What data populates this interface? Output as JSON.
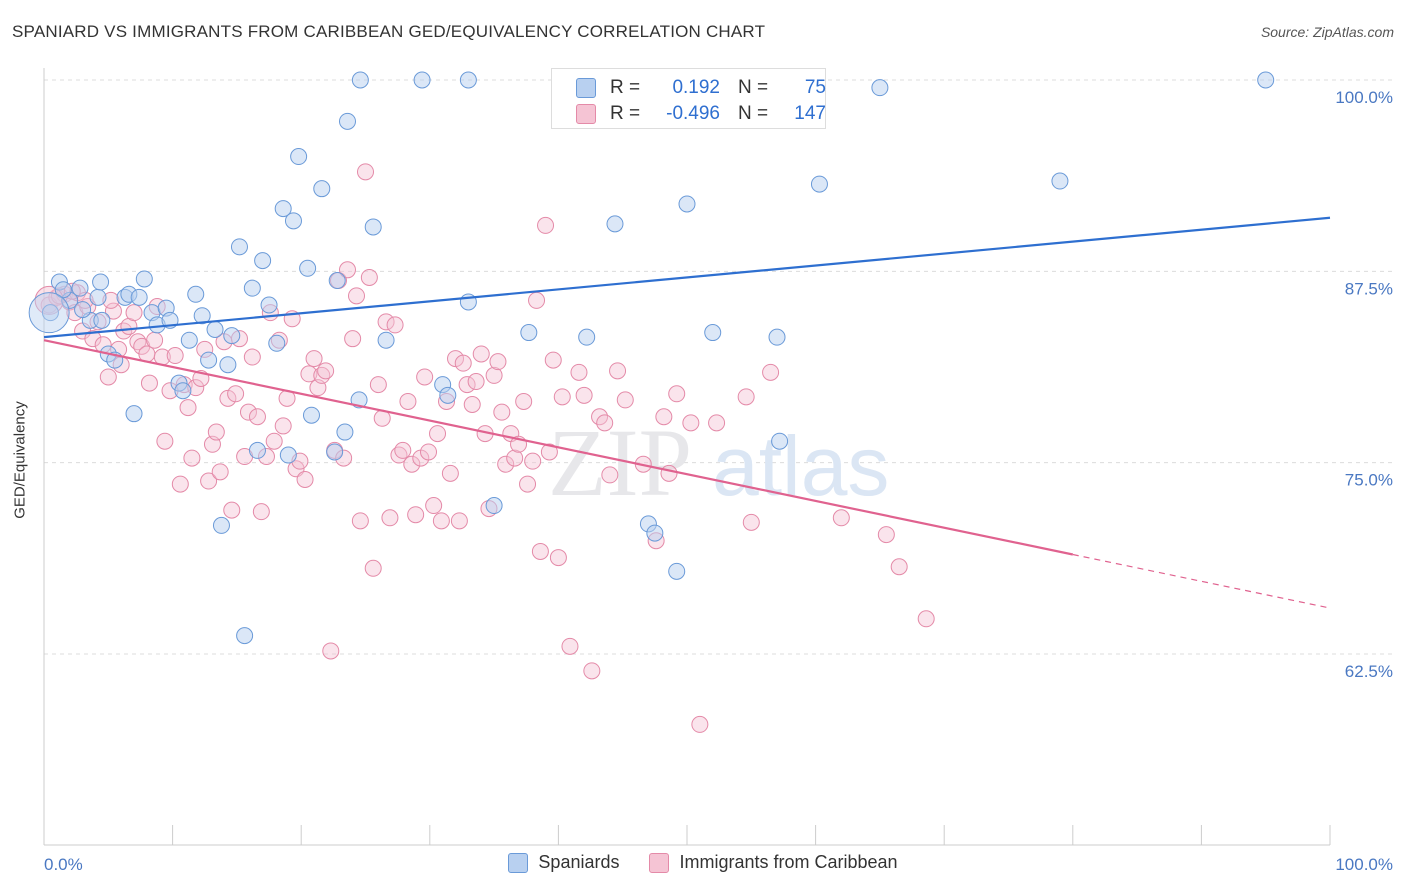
{
  "title": "SPANIARD VS IMMIGRANTS FROM CARIBBEAN GED/EQUIVALENCY CORRELATION CHART",
  "source": "Source: ZipAtlas.com",
  "watermark": {
    "zip": "ZIP",
    "atlas": "atlas"
  },
  "colors": {
    "blue_fill": "#b8d0f0",
    "blue_stroke": "#6a9ad8",
    "blue_line": "#2e6fd0",
    "pink_fill": "#f5c4d4",
    "pink_stroke": "#e48aa8",
    "pink_line": "#e0628f",
    "value_text": "#2f6fd0"
  },
  "stats": [
    {
      "label": "R =",
      "r": "0.192",
      "n_label": "N =",
      "n": "75",
      "series": "blue"
    },
    {
      "label": "R =",
      "r": "-0.496",
      "n_label": "N =",
      "n": "147",
      "series": "pink"
    }
  ],
  "legend": {
    "spaniards": "Spaniards",
    "caribbean": "Immigrants from Caribbean"
  },
  "chart_data": {
    "type": "scatter",
    "title": "SPANIARD VS IMMIGRANTS FROM CARIBBEAN GED/EQUIVALENCY CORRELATION CHART",
    "xlabel": "",
    "ylabel": "GED/Equivalency",
    "xlim": [
      0,
      100
    ],
    "ylim": [
      52,
      100
    ],
    "x_tick_labels": [
      "0.0%",
      "100.0%"
    ],
    "y_ticks": [
      {
        "value": 100,
        "label": "100.0%"
      },
      {
        "value": 87.5,
        "label": "87.5%"
      },
      {
        "value": 75,
        "label": "75.0%"
      },
      {
        "value": 62.5,
        "label": "62.5%"
      }
    ],
    "grid": "horizontal dashed",
    "legend_position": "bottom",
    "series": [
      {
        "name": "Spaniards",
        "color": "#6a9ad8",
        "trend": {
          "x": [
            0,
            100
          ],
          "y": [
            83.2,
            91.0
          ],
          "dashed_from": null
        },
        "points": [
          [
            0.5,
            84.8
          ],
          [
            1.2,
            86.8
          ],
          [
            2.0,
            85.6
          ],
          [
            2.8,
            86.4
          ],
          [
            3.6,
            84.3
          ],
          [
            4.2,
            85.8
          ],
          [
            4.4,
            86.8
          ],
          [
            4.5,
            84.3
          ],
          [
            5.0,
            82.1
          ],
          [
            5.5,
            81.7
          ],
          [
            6.3,
            85.8
          ],
          [
            6.6,
            86.0
          ],
          [
            7.0,
            78.2
          ],
          [
            7.4,
            85.8
          ],
          [
            7.8,
            87.0
          ],
          [
            8.4,
            84.8
          ],
          [
            8.8,
            84.0
          ],
          [
            9.5,
            85.1
          ],
          [
            9.8,
            84.3
          ],
          [
            10.5,
            80.2
          ],
          [
            10.8,
            79.7
          ],
          [
            11.3,
            83.0
          ],
          [
            11.8,
            86.0
          ],
          [
            12.3,
            84.6
          ],
          [
            12.8,
            81.7
          ],
          [
            13.3,
            83.7
          ],
          [
            13.8,
            70.9
          ],
          [
            14.3,
            81.4
          ],
          [
            14.6,
            83.3
          ],
          [
            15.2,
            89.1
          ],
          [
            15.6,
            63.7
          ],
          [
            16.2,
            86.4
          ],
          [
            16.6,
            75.8
          ],
          [
            17.0,
            88.2
          ],
          [
            17.5,
            85.3
          ],
          [
            18.1,
            82.8
          ],
          [
            18.6,
            91.6
          ],
          [
            19.0,
            75.5
          ],
          [
            19.4,
            90.8
          ],
          [
            19.8,
            95.0
          ],
          [
            20.5,
            87.7
          ],
          [
            20.8,
            78.1
          ],
          [
            21.6,
            92.9
          ],
          [
            22.8,
            86.9
          ],
          [
            22.6,
            75.7
          ],
          [
            23.4,
            77.0
          ],
          [
            23.6,
            97.3
          ],
          [
            24.5,
            79.1
          ],
          [
            24.6,
            100.0
          ],
          [
            25.6,
            90.4
          ],
          [
            26.6,
            83.0
          ],
          [
            29.4,
            100.0
          ],
          [
            31.0,
            80.1
          ],
          [
            31.4,
            79.4
          ],
          [
            33.0,
            100.0
          ],
          [
            33.0,
            85.5
          ],
          [
            35.0,
            72.2
          ],
          [
            37.7,
            83.5
          ],
          [
            40.3,
            100.0
          ],
          [
            42.2,
            83.2
          ],
          [
            44.4,
            90.6
          ],
          [
            47.0,
            71.0
          ],
          [
            47.5,
            70.4
          ],
          [
            49.2,
            67.9
          ],
          [
            50.5,
            100.0
          ],
          [
            50.0,
            91.9
          ],
          [
            52.0,
            83.5
          ],
          [
            57.2,
            76.4
          ],
          [
            57.0,
            83.2
          ],
          [
            60.3,
            93.2
          ],
          [
            79.0,
            93.4
          ],
          [
            95.0,
            100.0
          ],
          [
            1.5,
            86.3
          ],
          [
            3.0,
            85.0
          ],
          [
            65.0,
            99.5
          ]
        ]
      },
      {
        "name": "Immigrants from Caribbean",
        "color": "#e48aa8",
        "trend": {
          "x": [
            0,
            100
          ],
          "y": [
            83.0,
            65.5
          ],
          "dashed_from": 80
        },
        "points": [
          [
            0.4,
            85.3
          ],
          [
            1.0,
            85.8
          ],
          [
            1.6,
            86.0
          ],
          [
            2.0,
            85.5
          ],
          [
            2.4,
            84.8
          ],
          [
            2.6,
            86.1
          ],
          [
            3.0,
            83.6
          ],
          [
            3.4,
            85.2
          ],
          [
            3.8,
            83.1
          ],
          [
            4.2,
            84.2
          ],
          [
            4.6,
            82.7
          ],
          [
            5.0,
            80.6
          ],
          [
            5.4,
            84.9
          ],
          [
            5.8,
            82.4
          ],
          [
            6.2,
            83.6
          ],
          [
            6.6,
            83.9
          ],
          [
            7.0,
            84.8
          ],
          [
            7.3,
            82.9
          ],
          [
            7.6,
            82.6
          ],
          [
            8.0,
            82.1
          ],
          [
            8.2,
            80.2
          ],
          [
            8.6,
            83.0
          ],
          [
            8.8,
            85.2
          ],
          [
            9.2,
            81.9
          ],
          [
            9.4,
            76.4
          ],
          [
            9.8,
            79.7
          ],
          [
            10.2,
            82.0
          ],
          [
            10.6,
            73.6
          ],
          [
            10.9,
            80.1
          ],
          [
            11.2,
            78.6
          ],
          [
            11.5,
            75.3
          ],
          [
            11.8,
            79.9
          ],
          [
            12.2,
            80.5
          ],
          [
            12.5,
            82.4
          ],
          [
            12.8,
            73.8
          ],
          [
            13.1,
            76.2
          ],
          [
            13.4,
            77.0
          ],
          [
            13.7,
            74.4
          ],
          [
            14.0,
            82.9
          ],
          [
            14.3,
            79.2
          ],
          [
            14.6,
            71.9
          ],
          [
            14.9,
            79.5
          ],
          [
            15.2,
            83.1
          ],
          [
            15.6,
            75.4
          ],
          [
            15.9,
            78.3
          ],
          [
            16.2,
            81.9
          ],
          [
            16.6,
            78.0
          ],
          [
            16.9,
            71.8
          ],
          [
            17.3,
            75.4
          ],
          [
            17.6,
            84.8
          ],
          [
            17.9,
            76.4
          ],
          [
            18.3,
            83.0
          ],
          [
            18.6,
            77.4
          ],
          [
            18.9,
            79.2
          ],
          [
            19.3,
            84.4
          ],
          [
            19.6,
            74.6
          ],
          [
            19.9,
            75.1
          ],
          [
            20.3,
            73.9
          ],
          [
            20.6,
            80.8
          ],
          [
            21.0,
            81.8
          ],
          [
            21.3,
            79.9
          ],
          [
            21.6,
            80.7
          ],
          [
            21.9,
            81.0
          ],
          [
            22.3,
            62.7
          ],
          [
            22.6,
            75.8
          ],
          [
            22.9,
            86.9
          ],
          [
            23.3,
            75.3
          ],
          [
            23.6,
            87.6
          ],
          [
            24.0,
            83.1
          ],
          [
            24.3,
            85.9
          ],
          [
            24.6,
            71.2
          ],
          [
            25.0,
            94.0
          ],
          [
            25.3,
            87.1
          ],
          [
            25.6,
            68.1
          ],
          [
            26.0,
            80.1
          ],
          [
            26.3,
            77.9
          ],
          [
            26.6,
            84.2
          ],
          [
            26.9,
            71.4
          ],
          [
            27.3,
            84.0
          ],
          [
            27.6,
            75.5
          ],
          [
            27.9,
            75.8
          ],
          [
            28.3,
            79.0
          ],
          [
            28.6,
            74.9
          ],
          [
            28.9,
            71.6
          ],
          [
            29.3,
            75.3
          ],
          [
            29.6,
            80.6
          ],
          [
            29.9,
            75.7
          ],
          [
            30.3,
            72.2
          ],
          [
            30.6,
            76.9
          ],
          [
            30.9,
            71.2
          ],
          [
            31.3,
            79.0
          ],
          [
            31.6,
            74.3
          ],
          [
            32.0,
            81.8
          ],
          [
            32.3,
            71.2
          ],
          [
            32.6,
            81.5
          ],
          [
            32.9,
            80.1
          ],
          [
            33.3,
            78.8
          ],
          [
            33.6,
            80.3
          ],
          [
            34.0,
            82.1
          ],
          [
            34.3,
            76.9
          ],
          [
            34.6,
            72.0
          ],
          [
            35.0,
            80.7
          ],
          [
            35.3,
            81.6
          ],
          [
            35.6,
            78.3
          ],
          [
            35.9,
            74.9
          ],
          [
            36.3,
            76.9
          ],
          [
            36.6,
            75.3
          ],
          [
            36.9,
            76.2
          ],
          [
            37.3,
            79.0
          ],
          [
            37.6,
            73.6
          ],
          [
            38.0,
            75.1
          ],
          [
            38.3,
            85.6
          ],
          [
            38.6,
            69.2
          ],
          [
            39.0,
            90.5
          ],
          [
            39.3,
            75.7
          ],
          [
            39.6,
            81.7
          ],
          [
            40.0,
            68.8
          ],
          [
            40.3,
            79.3
          ],
          [
            40.9,
            63.0
          ],
          [
            41.6,
            80.9
          ],
          [
            42.0,
            79.4
          ],
          [
            42.6,
            61.4
          ],
          [
            43.2,
            78.0
          ],
          [
            43.6,
            77.6
          ],
          [
            44.0,
            74.2
          ],
          [
            44.6,
            81.0
          ],
          [
            45.2,
            79.1
          ],
          [
            46.6,
            74.9
          ],
          [
            47.6,
            69.9
          ],
          [
            48.2,
            78.0
          ],
          [
            48.6,
            74.3
          ],
          [
            49.2,
            79.5
          ],
          [
            50.3,
            77.6
          ],
          [
            51.0,
            57.9
          ],
          [
            52.3,
            77.6
          ],
          [
            54.6,
            79.3
          ],
          [
            55.0,
            71.1
          ],
          [
            56.5,
            80.9
          ],
          [
            62.0,
            71.4
          ],
          [
            65.5,
            70.3
          ],
          [
            66.5,
            68.2
          ],
          [
            68.6,
            64.8
          ],
          [
            5.2,
            85.6
          ],
          [
            6.0,
            81.4
          ],
          [
            1.2,
            85.9
          ],
          [
            2.2,
            86.2
          ],
          [
            3.2,
            85.6
          ]
        ]
      }
    ]
  }
}
